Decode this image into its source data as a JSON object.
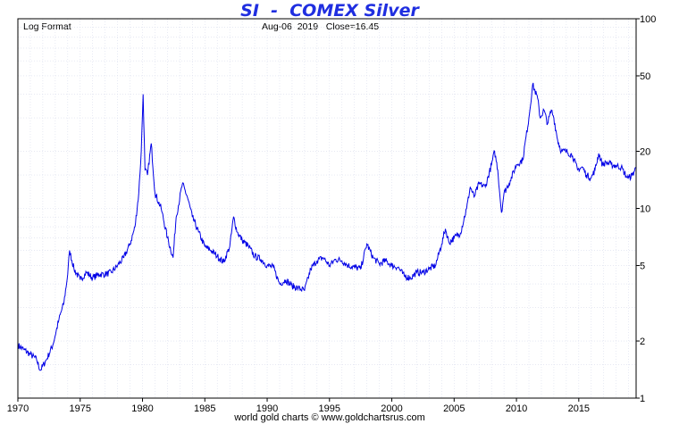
{
  "chart_data": {
    "type": "line",
    "title": "SI  -  COMEX Silver",
    "top_left_label": "Log Format",
    "top_center_label": "Aug-06  2019   Close=16.45",
    "footer": "world gold charts © www.goldchartsrus.com",
    "y_scale": "log",
    "ylim": [
      1,
      100
    ],
    "y_ticks": [
      100,
      50,
      20,
      10,
      5,
      2,
      1
    ],
    "y_axis_position": "right",
    "xlim": [
      1970,
      2019.6
    ],
    "x_ticks": [
      1970,
      1975,
      1980,
      1985,
      1990,
      1995,
      2000,
      2005,
      2010,
      2015
    ],
    "grid": true,
    "line_color": "#0000e6",
    "series": [
      {
        "x": [
          1970.0,
          1970.5,
          1971.0,
          1971.5,
          1971.8,
          1972.3,
          1972.8,
          1973.3,
          1973.7,
          1974.0,
          1974.15,
          1974.5,
          1975.0,
          1975.5,
          1976.0,
          1976.5,
          1977.0,
          1977.5,
          1978.0,
          1978.5,
          1979.0,
          1979.4,
          1979.7,
          1979.9,
          1980.05,
          1980.2,
          1980.4,
          1980.7,
          1981.0,
          1981.5,
          1982.0,
          1982.45,
          1982.7,
          1983.2,
          1983.6,
          1984.0,
          1984.5,
          1985.0,
          1985.5,
          1986.0,
          1986.5,
          1987.0,
          1987.3,
          1987.6,
          1988.0,
          1988.5,
          1989.0,
          1989.5,
          1990.0,
          1990.5,
          1991.0,
          1991.5,
          1992.0,
          1992.5,
          1993.0,
          1993.5,
          1994.0,
          1994.5,
          1995.0,
          1995.5,
          1996.0,
          1996.5,
          1997.0,
          1997.5,
          1998.0,
          1998.5,
          1999.0,
          1999.5,
          2000.0,
          2000.5,
          2001.0,
          2001.5,
          2002.0,
          2002.5,
          2003.0,
          2003.5,
          2004.0,
          2004.3,
          2004.6,
          2005.0,
          2005.5,
          2006.0,
          2006.3,
          2006.6,
          2007.0,
          2007.5,
          2008.0,
          2008.25,
          2008.5,
          2008.8,
          2009.0,
          2009.5,
          2010.0,
          2010.5,
          2011.0,
          2011.3,
          2011.7,
          2011.9,
          2012.2,
          2012.5,
          2012.8,
          2013.0,
          2013.3,
          2013.6,
          2014.0,
          2014.5,
          2014.9,
          2015.3,
          2015.6,
          2016.0,
          2016.3,
          2016.6,
          2016.9,
          2017.2,
          2017.6,
          2018.0,
          2018.4,
          2018.8,
          2019.0,
          2019.3,
          2019.6
        ],
        "values": [
          1.9,
          1.8,
          1.7,
          1.6,
          1.4,
          1.6,
          1.9,
          2.6,
          3.2,
          4.5,
          6.0,
          4.8,
          4.2,
          4.6,
          4.3,
          4.5,
          4.5,
          4.6,
          5.0,
          5.5,
          6.5,
          8.0,
          12.0,
          20.0,
          40.0,
          16.0,
          15.0,
          22.0,
          12.0,
          10.0,
          7.0,
          5.5,
          9.0,
          13.5,
          11.5,
          9.0,
          7.5,
          6.3,
          6.0,
          5.6,
          5.2,
          6.3,
          9.0,
          7.5,
          6.8,
          6.3,
          5.6,
          5.4,
          5.0,
          4.9,
          4.0,
          4.2,
          3.9,
          3.8,
          3.7,
          4.8,
          5.3,
          5.5,
          5.0,
          5.4,
          5.3,
          5.0,
          4.9,
          4.8,
          6.5,
          5.5,
          5.1,
          5.3,
          5.0,
          4.9,
          4.4,
          4.3,
          4.6,
          4.6,
          4.8,
          5.0,
          6.5,
          7.8,
          6.6,
          7.0,
          7.4,
          10.0,
          13.0,
          11.5,
          13.5,
          13.0,
          17.0,
          20.0,
          16.0,
          9.5,
          12.0,
          14.0,
          17.0,
          18.0,
          30.0,
          45.0,
          38.0,
          30.0,
          33.0,
          28.0,
          33.0,
          30.0,
          23.0,
          20.0,
          20.0,
          19.0,
          16.0,
          16.5,
          15.0,
          14.5,
          16.0,
          19.5,
          17.0,
          17.5,
          17.0,
          16.8,
          16.5,
          14.8,
          14.5,
          15.0,
          16.45
        ]
      }
    ]
  }
}
